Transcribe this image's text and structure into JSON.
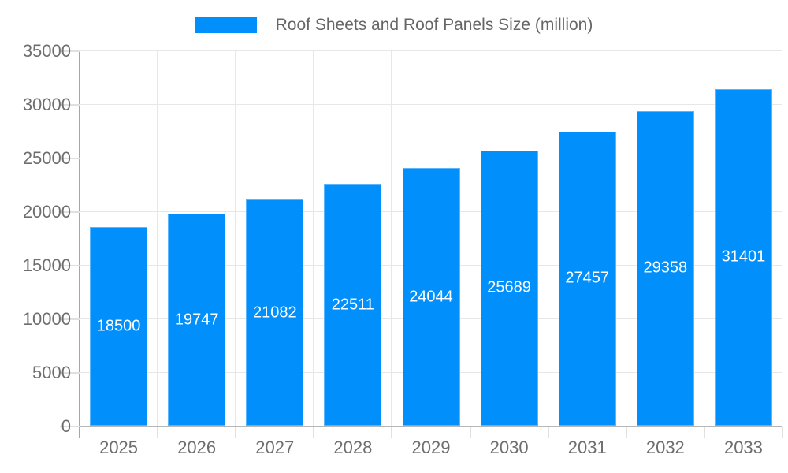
{
  "chart_data": {
    "type": "bar",
    "title": "Roof Sheets and Roof Panels Size (million)",
    "legend": {
      "position": "top",
      "entries": [
        "Roof Sheets and Roof Panels Size (million)"
      ]
    },
    "categories": [
      "2025",
      "2026",
      "2027",
      "2028",
      "2029",
      "2030",
      "2031",
      "2032",
      "2033"
    ],
    "series": [
      {
        "name": "Roof Sheets and Roof Panels Size (million)",
        "values": [
          18500,
          19747,
          21082,
          22511,
          24044,
          25689,
          27457,
          29358,
          31401
        ]
      }
    ],
    "data_labels": [
      "18500",
      "19747",
      "21082",
      "22511",
      "24044",
      "25689",
      "27457",
      "29358",
      "31401"
    ],
    "xlabel": "",
    "ylabel": "",
    "ylim": [
      0,
      35000
    ],
    "ytick_step": 5000,
    "ytick_labels": [
      "0",
      "5000",
      "10000",
      "15000",
      "20000",
      "25000",
      "30000",
      "35000"
    ],
    "grid": true,
    "colors": {
      "bar": "#008FFB",
      "bar_label_text": "#ffffff",
      "axis_text": "#6e6e6e",
      "legend_text": "#666666",
      "gridline": "#e7e7e7",
      "axis_line": "#a6a6a6"
    }
  }
}
